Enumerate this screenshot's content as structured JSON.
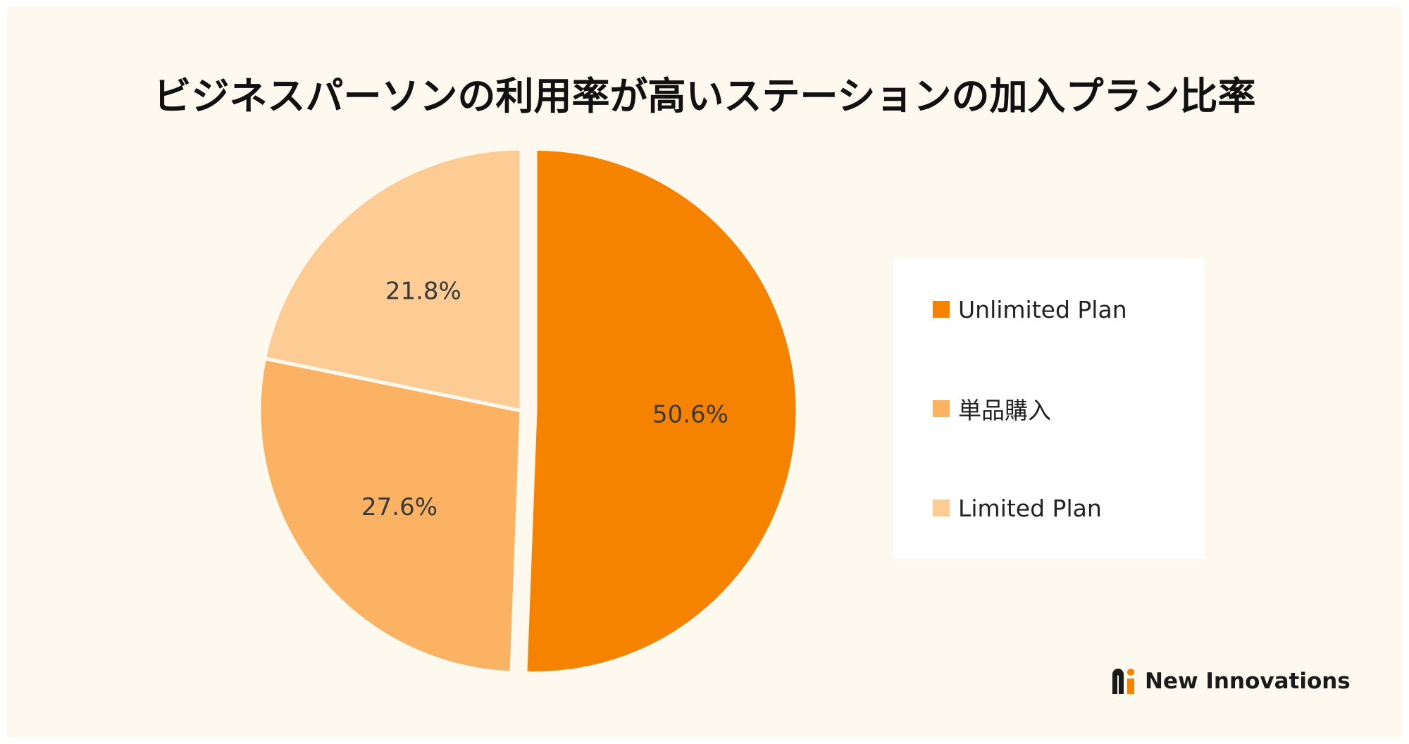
{
  "chart_data": {
    "type": "pie",
    "title": "ビジネスパーソンの利用率が高いステーションの加入プラン比率",
    "categories": [
      "Unlimited Plan",
      "単品購入",
      "Limited Plan"
    ],
    "values": [
      50.6,
      27.6,
      21.8
    ],
    "labels": [
      "50.6%",
      "27.6%",
      "21.8%"
    ],
    "colors": [
      "#f58300",
      "#fbb263",
      "#fdcb94"
    ],
    "legend_position": "right",
    "exploded": "Unlimited Plan"
  },
  "brand": {
    "name": "New Innovations",
    "logo_icon": "ni-logo-icon"
  }
}
